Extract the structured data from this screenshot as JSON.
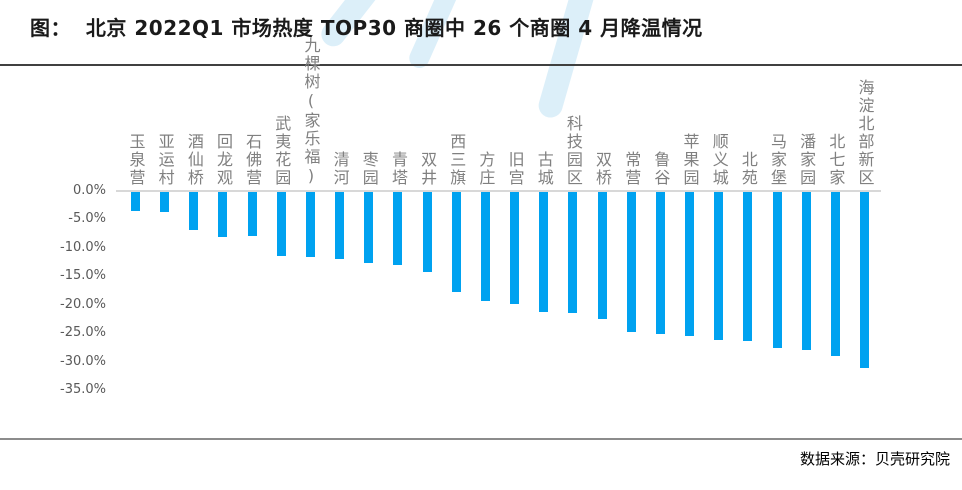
{
  "header": {
    "title": "图：  北京 2022Q1 市场热度 TOP30 商圈中 26 个商圈 4 月降温情况"
  },
  "footer": {
    "source": "数据来源：贝壳研究院"
  },
  "colors": {
    "bar": "#00A2F0",
    "axis_line": "#D8D8D8",
    "tick_label": "#595959",
    "category_label": "#808080",
    "top_divider": "#404040",
    "bottom_divider": "#8C8C8C",
    "watermark": "#8CC9EC",
    "title_text": "#1A1A1A"
  },
  "chart_data": {
    "type": "bar",
    "title": "北京 2022Q1 市场热度 TOP30 商圈中 26 个商圈 4 月降温情况",
    "categories": [
      "玉泉营",
      "亚运村",
      "酒仙桥",
      "回龙观",
      "石佛营",
      "武夷花园",
      "九棵树(家乐福)",
      "清河",
      "枣园",
      "青塔",
      "双井",
      "西三旗",
      "方庄",
      "旧宫",
      "古城",
      "科技园区",
      "双桥",
      "常营",
      "鲁谷",
      "苹果园",
      "顺义城",
      "北苑",
      "马家堡",
      "潘家园",
      "北七家",
      "海淀北部新区"
    ],
    "values": [
      -3.4,
      -3.5,
      -6.6,
      -7.9,
      -7.8,
      -11.3,
      -11.5,
      -11.8,
      -12.4,
      -12.8,
      -14.0,
      -17.6,
      -19.1,
      -19.6,
      -21.1,
      -21.3,
      -22.4,
      -24.6,
      -24.9,
      -25.3,
      -26.0,
      -26.2,
      -27.4,
      -27.8,
      -28.9,
      -31.0
    ],
    "unit": "%",
    "xlabel": "",
    "ylabel": "",
    "ylim": [
      -35,
      0
    ],
    "yticks": [
      "0.0%",
      "-5.0%",
      "-10.0%",
      "-15.0%",
      "-20.0%",
      "-25.0%",
      "-30.0%",
      "-35.0%"
    ],
    "grid": false,
    "legend": false,
    "bar_color": "#00A2F0"
  }
}
